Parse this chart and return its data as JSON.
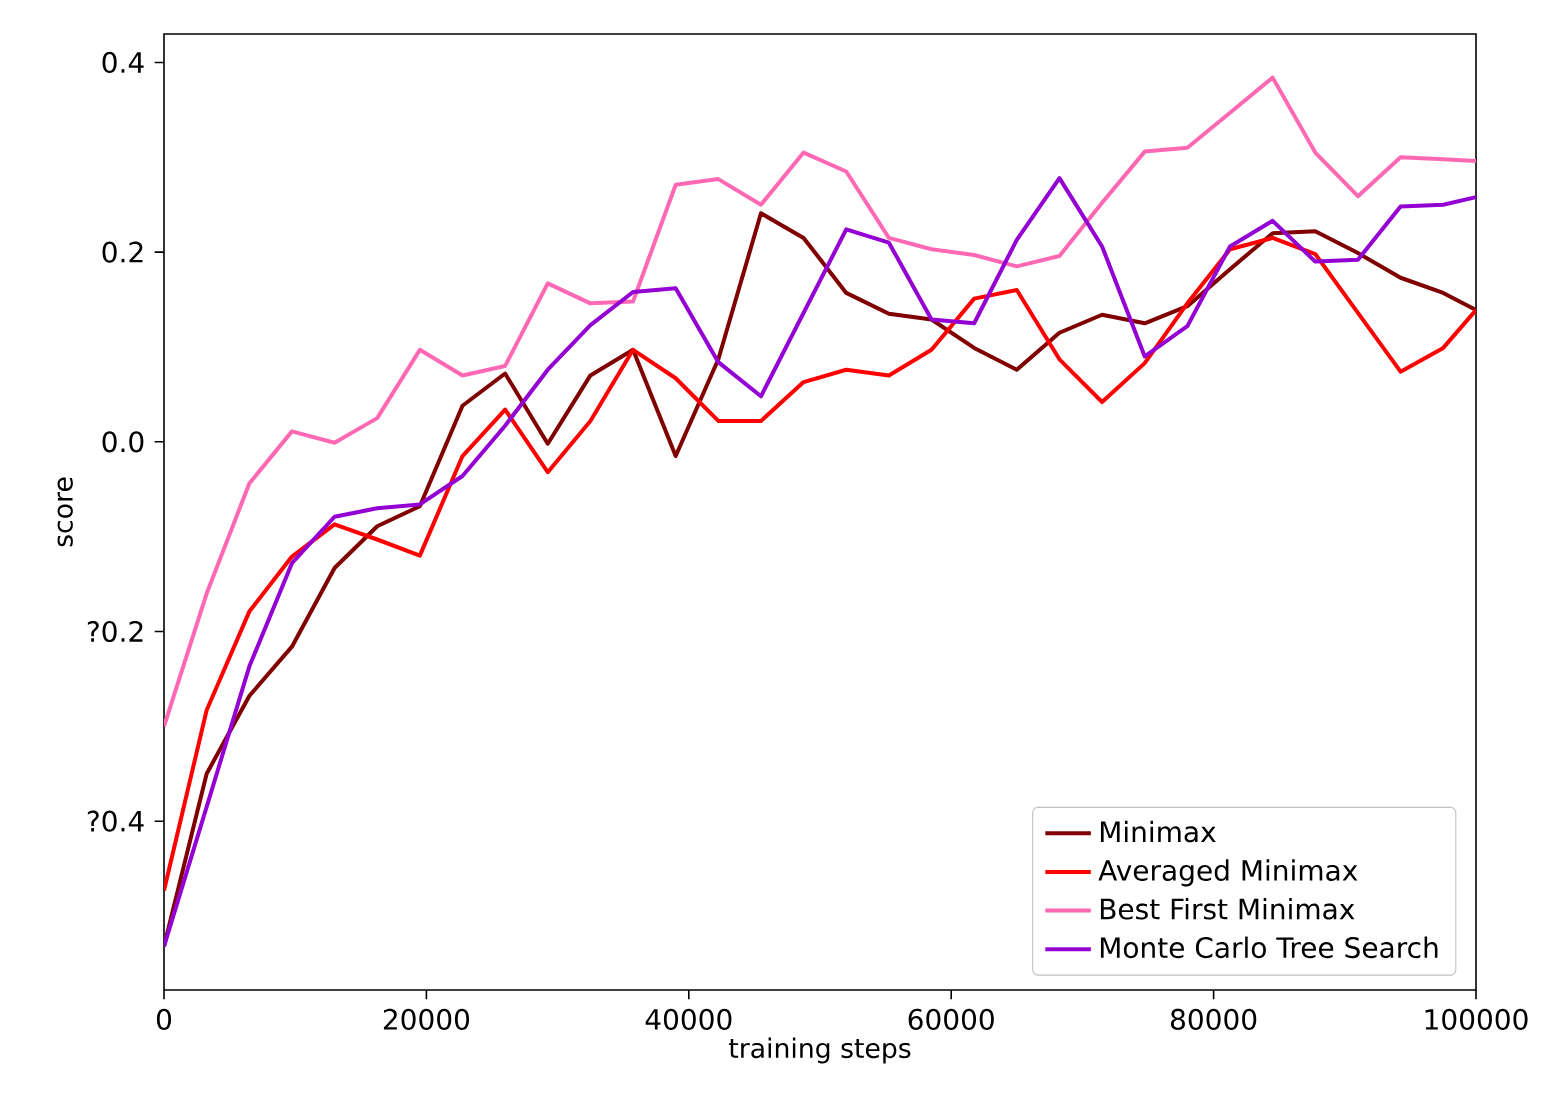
{
  "chart_data": {
    "type": "line",
    "xlabel": "training steps",
    "ylabel": "score",
    "x": [
      0,
      3250,
      6500,
      9750,
      13000,
      16250,
      19500,
      22750,
      26000,
      29250,
      32500,
      35750,
      39000,
      42250,
      45500,
      48750,
      52000,
      55250,
      58500,
      61750,
      65000,
      68250,
      71500,
      74750,
      78000,
      81250,
      84500,
      87750,
      91000,
      94250,
      97500,
      100000
    ],
    "series": [
      {
        "name": "Minimax",
        "color": "#800000",
        "values": [
          -0.532,
          -0.35,
          -0.268,
          -0.216,
          -0.133,
          -0.089,
          -0.068,
          0.038,
          0.072,
          -0.002,
          0.07,
          0.097,
          -0.015,
          0.087,
          0.241,
          0.215,
          0.157,
          0.135,
          0.129,
          0.099,
          0.076,
          0.115,
          0.134,
          0.125,
          0.143,
          0.182,
          0.22,
          0.222,
          0.199,
          0.173,
          0.157,
          0.139
        ]
      },
      {
        "name": "Averaged Minimax",
        "color": "#ff0000",
        "values": [
          -0.473,
          -0.283,
          -0.179,
          -0.121,
          -0.087,
          -0.103,
          -0.12,
          -0.015,
          0.034,
          -0.032,
          0.022,
          0.097,
          0.067,
          0.022,
          0.022,
          0.063,
          0.076,
          0.07,
          0.097,
          0.151,
          0.16,
          0.087,
          0.042,
          0.083,
          0.146,
          0.203,
          0.215,
          0.198,
          0.136,
          0.074,
          0.099,
          0.139
        ]
      },
      {
        "name": "Best First Minimax",
        "color": "#ff69b4",
        "values": [
          -0.3,
          -0.16,
          -0.044,
          0.011,
          -0.001,
          0.025,
          0.097,
          0.07,
          0.08,
          0.167,
          0.146,
          0.148,
          0.271,
          0.277,
          0.25,
          0.305,
          0.285,
          0.215,
          0.203,
          0.197,
          0.185,
          0.196,
          0.252,
          0.306,
          0.31,
          0.347,
          0.384,
          0.305,
          0.259,
          0.3,
          0.298,
          0.296
        ]
      },
      {
        "name": "Monte Carlo Tree Search",
        "color": "#9400d3",
        "values": [
          -0.532,
          -0.385,
          -0.237,
          -0.128,
          -0.079,
          -0.07,
          -0.066,
          -0.036,
          0.017,
          0.076,
          0.123,
          0.158,
          0.162,
          0.084,
          0.048,
          0.136,
          0.224,
          0.21,
          0.129,
          0.125,
          0.213,
          0.278,
          0.206,
          0.09,
          0.122,
          0.206,
          0.233,
          0.19,
          0.192,
          0.248,
          0.25,
          0.258
        ]
      }
    ],
    "xlim": [
      0,
      100000
    ],
    "ylim": [
      -0.578,
      0.43
    ],
    "xticks": [
      0,
      20000,
      40000,
      60000,
      80000,
      100000
    ],
    "yticks": [
      {
        "value": -0.4,
        "label": "?0.4"
      },
      {
        "value": -0.2,
        "label": "?0.2"
      },
      {
        "value": 0.0,
        "label": "0.0"
      },
      {
        "value": 0.2,
        "label": "0.2"
      },
      {
        "value": 0.4,
        "label": "0.4"
      }
    ],
    "legend": "bottom right"
  }
}
